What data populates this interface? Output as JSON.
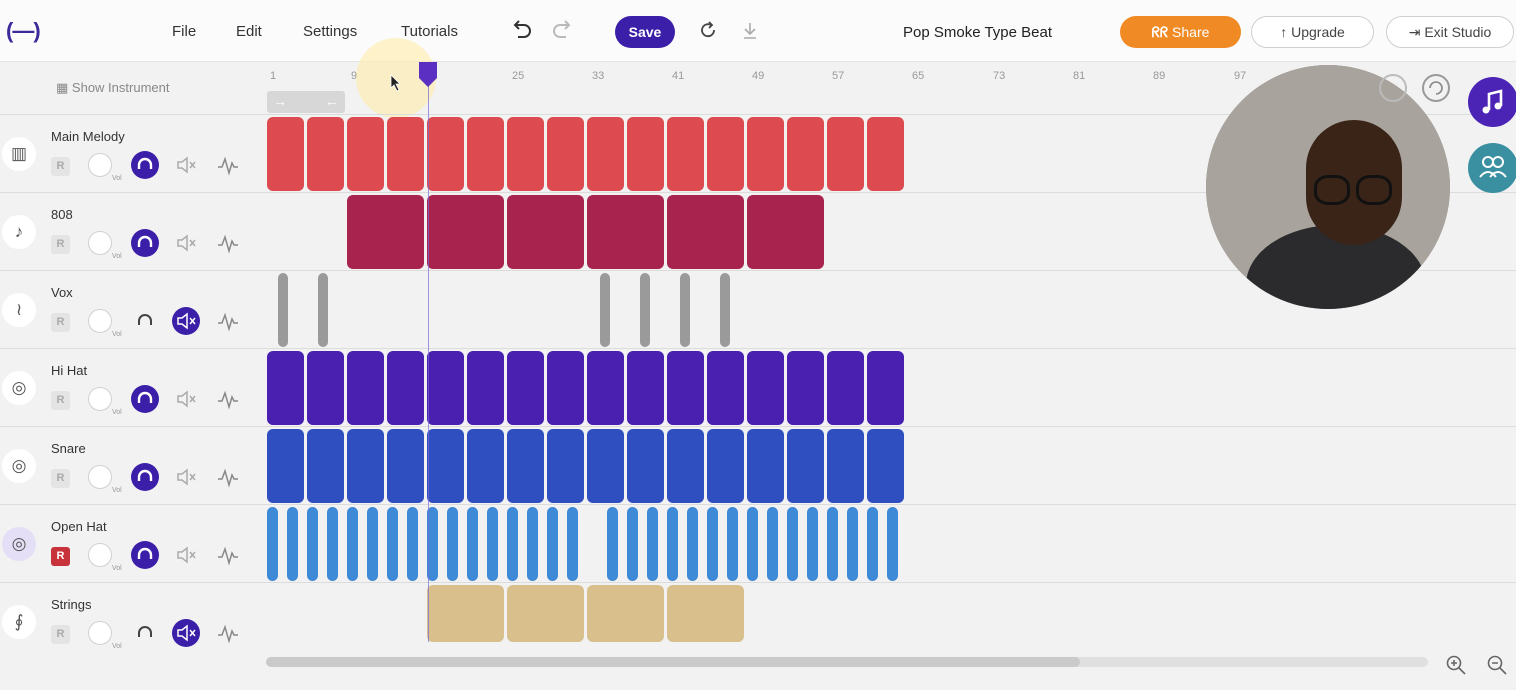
{
  "app": {
    "logo_text": "(—)",
    "menu": [
      "File",
      "Edit",
      "Settings",
      "Tutorials"
    ],
    "save_label": "Save",
    "project_title": "Pop Smoke Type Beat",
    "share_label": "Share",
    "upgrade_label": "Upgrade",
    "exit_label": "Exit Studio"
  },
  "timeline": {
    "show_instrument_label": "Show Instrument",
    "ticks": [
      "1",
      "9",
      "25",
      "33",
      "41",
      "49",
      "57",
      "65",
      "73",
      "81",
      "89",
      "97"
    ],
    "loop_start_arrow": "→",
    "loop_end_arrow": "←"
  },
  "tracks": [
    {
      "name": "Main Melody",
      "icon": "piano-icon",
      "record": "R",
      "vol_label": "Vol",
      "solo": true,
      "muted": false,
      "color": "#dd4a4f"
    },
    {
      "name": "808",
      "icon": "guitar-icon",
      "record": "R",
      "vol_label": "Vol",
      "solo": true,
      "muted": false,
      "color": "#a8234e"
    },
    {
      "name": "Vox",
      "icon": "waveform-icon",
      "record": "R",
      "vol_label": "Vol",
      "solo": false,
      "muted": true,
      "color": "#9a9a9a"
    },
    {
      "name": "Hi Hat",
      "icon": "drum-icon",
      "record": "R",
      "vol_label": "Vol",
      "solo": true,
      "muted": false,
      "color": "#4a20b0"
    },
    {
      "name": "Snare",
      "icon": "drum-icon",
      "record": "R",
      "vol_label": "Vol",
      "solo": true,
      "muted": false,
      "color": "#2f4ec0"
    },
    {
      "name": "Open Hat",
      "icon": "drum-icon",
      "record": "R",
      "vol_label": "Vol",
      "solo": true,
      "muted": false,
      "color": "#3f8ad6"
    },
    {
      "name": "Strings",
      "icon": "violin-icon",
      "record": "R",
      "vol_label": "Vol",
      "solo": false,
      "muted": true,
      "color": "#d9bf8c"
    }
  ],
  "colors": {
    "accent": "#3b1fa8",
    "share": "#f08a24",
    "teal": "#3a8fa0"
  }
}
